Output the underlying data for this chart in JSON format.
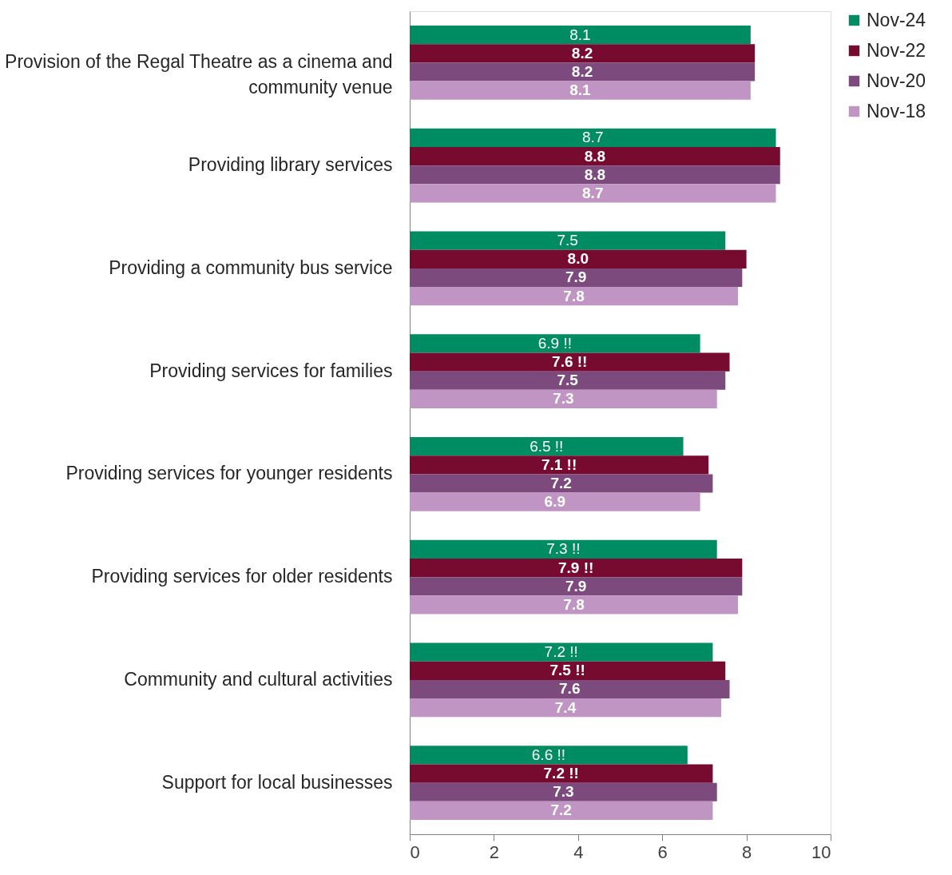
{
  "chart_data": {
    "type": "bar",
    "orientation": "horizontal",
    "categories": [
      "Provision of the Regal Theatre as a cinema and community venue",
      "Providing library services",
      "Providing a community bus service",
      "Providing services for families",
      "Providing services for younger residents",
      "Providing services for older residents",
      "Community and cultural activities",
      "Support for local businesses"
    ],
    "series": [
      {
        "name": "Nov-24",
        "color": "#008c62",
        "values": [
          8.1,
          8.7,
          7.5,
          6.9,
          6.5,
          7.3,
          7.2,
          6.6
        ],
        "value_labels": [
          "8.1",
          "8.7",
          "7.5",
          "6.9 !!",
          "6.5 !!",
          "7.3 !!",
          "7.2 !!",
          "6.6 !!"
        ]
      },
      {
        "name": "Nov-22",
        "color": "#760a2f",
        "values": [
          8.2,
          8.8,
          8.0,
          7.6,
          7.1,
          7.9,
          7.5,
          7.2
        ],
        "value_labels": [
          "8.2",
          "8.8",
          "8.0",
          "7.6 !!",
          "7.1 !!",
          "7.9 !!",
          "7.5 !!",
          "7.2 !!"
        ]
      },
      {
        "name": "Nov-20",
        "color": "#7c4a7c",
        "values": [
          8.2,
          8.8,
          7.9,
          7.5,
          7.2,
          7.9,
          7.6,
          7.3
        ],
        "value_labels": [
          "8.2",
          "8.8",
          "7.9",
          "7.5",
          "7.2",
          "7.9",
          "7.6",
          "7.3"
        ]
      },
      {
        "name": "Nov-18",
        "color": "#c195c3",
        "values": [
          8.1,
          8.7,
          7.8,
          7.3,
          6.9,
          7.8,
          7.4,
          7.2
        ],
        "value_labels": [
          "8.1",
          "8.7",
          "7.8",
          "7.3",
          "6.9",
          "7.8",
          "7.4",
          "7.2"
        ]
      }
    ],
    "xlim": [
      0,
      10
    ],
    "xticks": [
      0,
      2,
      4,
      6,
      8,
      10
    ],
    "grid": false,
    "legend": "right"
  }
}
